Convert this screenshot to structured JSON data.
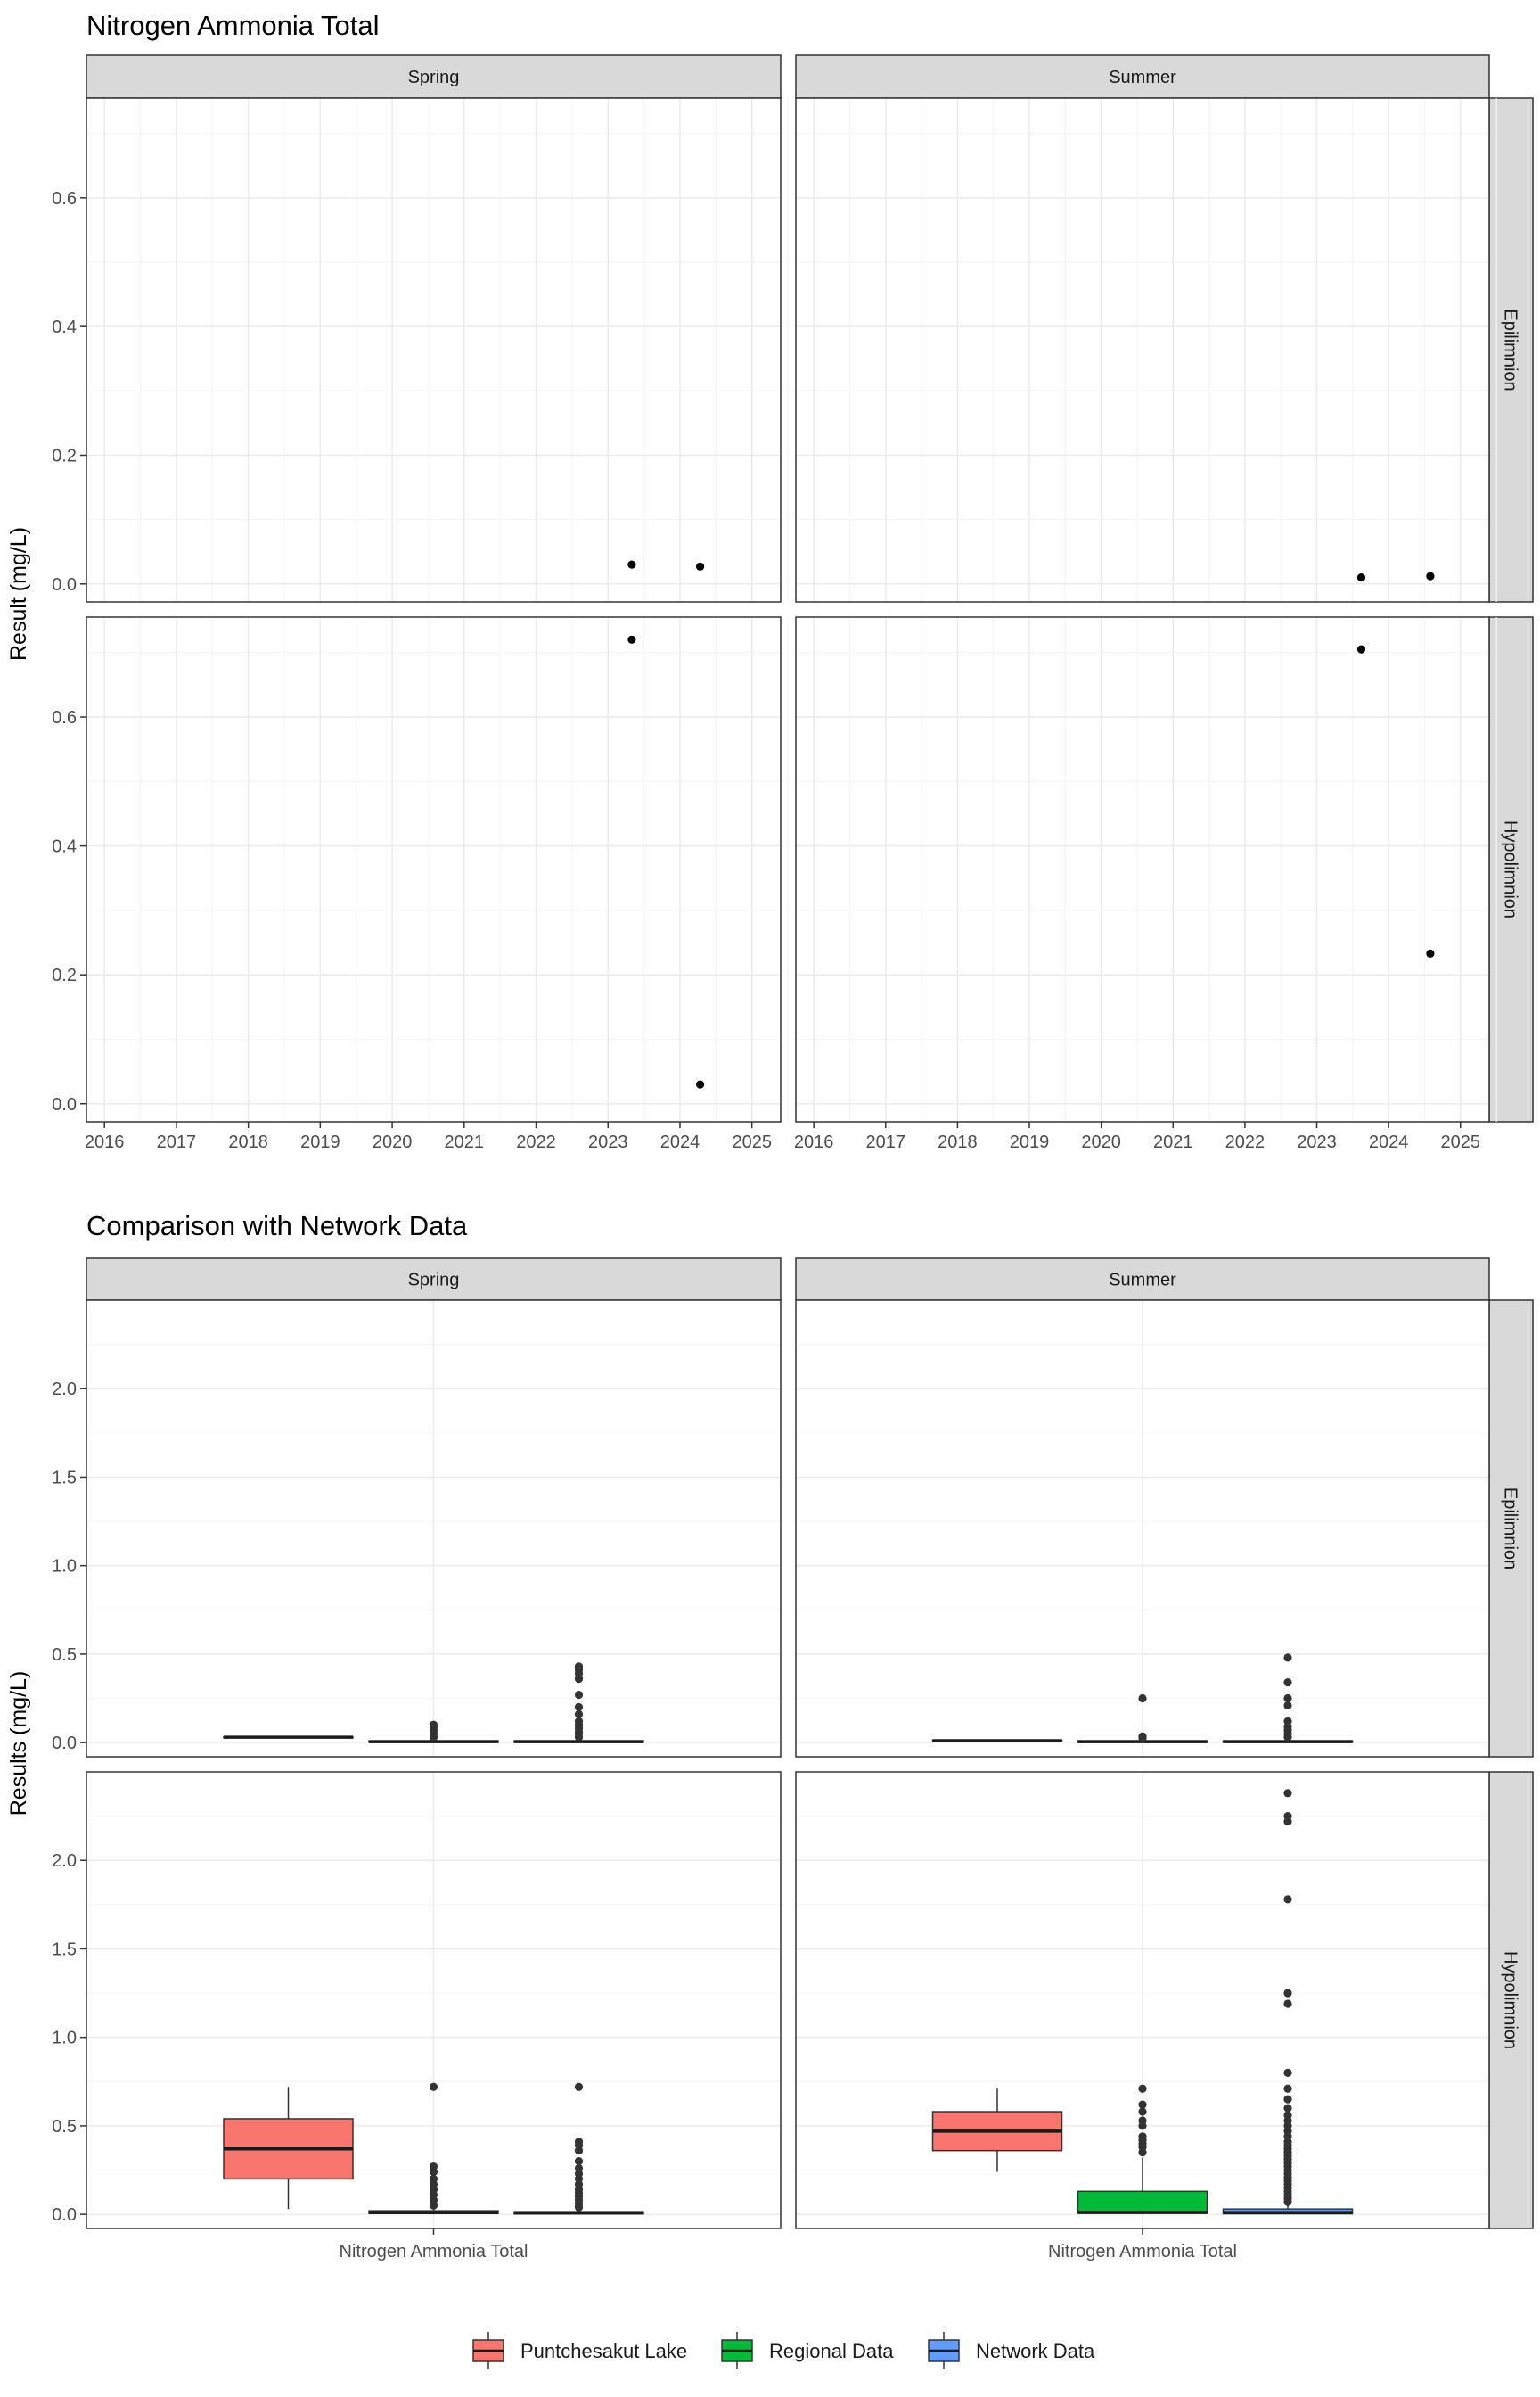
{
  "chart_data": [
    {
      "type": "scatter",
      "title": "Nitrogen Ammonia Total",
      "ylabel": "Result (mg/L)",
      "xlabel": "",
      "facet_cols": [
        "Spring",
        "Summer"
      ],
      "facet_rows": [
        "Epilimnion",
        "Hypolimnion"
      ],
      "x_ticks": [
        "2016",
        "2017",
        "2018",
        "2019",
        "2020",
        "2021",
        "2022",
        "2023",
        "2024",
        "2025"
      ],
      "xlim": [
        2015.75,
        2025.4
      ],
      "y_ticks": [
        "0.0",
        "0.2",
        "0.4",
        "0.6"
      ],
      "ylim": [
        -0.028,
        0.755
      ],
      "grid": true,
      "panels": [
        {
          "season": "Spring",
          "layer": "Epilimnion",
          "points": [
            {
              "x": 2023.33,
              "y": 0.03
            },
            {
              "x": 2024.28,
              "y": 0.027
            }
          ]
        },
        {
          "season": "Summer",
          "layer": "Epilimnion",
          "points": [
            {
              "x": 2023.62,
              "y": 0.01
            },
            {
              "x": 2024.58,
              "y": 0.012
            }
          ]
        },
        {
          "season": "Spring",
          "layer": "Hypolimnion",
          "points": [
            {
              "x": 2023.33,
              "y": 0.72
            },
            {
              "x": 2024.28,
              "y": 0.03
            }
          ]
        },
        {
          "season": "Summer",
          "layer": "Hypolimnion",
          "points": [
            {
              "x": 2023.62,
              "y": 0.705
            },
            {
              "x": 2024.58,
              "y": 0.233
            }
          ]
        }
      ]
    },
    {
      "type": "boxplot",
      "title": "Comparison with Network Data",
      "ylabel": "Results (mg/L)",
      "xlabel": "",
      "facet_cols": [
        "Spring",
        "Summer"
      ],
      "facet_rows": [
        "Epilimnion",
        "Hypolimnion"
      ],
      "category": "Nitrogen Ammonia Total",
      "y_ticks": [
        "0.0",
        "0.5",
        "1.0",
        "1.5",
        "2.0"
      ],
      "ylim": [
        -0.08,
        2.5
      ],
      "grid": true,
      "legend_position": "bottom",
      "groups": [
        {
          "name": "Puntchesakut Lake",
          "color": "#F8766D"
        },
        {
          "name": "Regional Data",
          "color": "#00BA38"
        },
        {
          "name": "Network Data",
          "color": "#619CFF"
        }
      ],
      "panels": [
        {
          "season": "Spring",
          "layer": "Epilimnion",
          "boxes": [
            {
              "q1": 0.028,
              "median": 0.03,
              "q3": 0.032,
              "lower": 0.028,
              "upper": 0.032,
              "outliers": []
            },
            {
              "q1": 0.002,
              "median": 0.005,
              "q3": 0.01,
              "lower": 0.0,
              "upper": 0.02,
              "outliers": [
                0.03,
                0.05,
                0.07,
                0.09,
                0.1
              ]
            },
            {
              "q1": 0.002,
              "median": 0.005,
              "q3": 0.01,
              "lower": 0.0,
              "upper": 0.02,
              "outliers": [
                0.03,
                0.05,
                0.06,
                0.08,
                0.1,
                0.12,
                0.16,
                0.2,
                0.27,
                0.36,
                0.39,
                0.41,
                0.43
              ]
            }
          ]
        },
        {
          "season": "Summer",
          "layer": "Epilimnion",
          "boxes": [
            {
              "q1": 0.009,
              "median": 0.011,
              "q3": 0.013,
              "lower": 0.009,
              "upper": 0.013,
              "outliers": []
            },
            {
              "q1": 0.002,
              "median": 0.005,
              "q3": 0.01,
              "lower": 0.0,
              "upper": 0.02,
              "outliers": [
                0.025,
                0.035,
                0.25
              ]
            },
            {
              "q1": 0.002,
              "median": 0.005,
              "q3": 0.01,
              "lower": 0.0,
              "upper": 0.02,
              "outliers": [
                0.03,
                0.05,
                0.07,
                0.09,
                0.12,
                0.21,
                0.25,
                0.34,
                0.48
              ]
            }
          ]
        },
        {
          "season": "Spring",
          "layer": "Hypolimnion",
          "boxes": [
            {
              "q1": 0.2,
              "median": 0.37,
              "q3": 0.54,
              "lower": 0.03,
              "upper": 0.72,
              "outliers": []
            },
            {
              "q1": 0.005,
              "median": 0.01,
              "q3": 0.02,
              "lower": 0.0,
              "upper": 0.035,
              "outliers": [
                0.05,
                0.08,
                0.11,
                0.14,
                0.17,
                0.2,
                0.24,
                0.27,
                0.72
              ]
            },
            {
              "q1": 0.002,
              "median": 0.008,
              "q3": 0.015,
              "lower": 0.0,
              "upper": 0.03,
              "outliers": [
                0.04,
                0.06,
                0.08,
                0.1,
                0.12,
                0.14,
                0.17,
                0.2,
                0.23,
                0.26,
                0.3,
                0.36,
                0.39,
                0.41,
                0.72
              ]
            }
          ]
        },
        {
          "season": "Summer",
          "layer": "Hypolimnion",
          "boxes": [
            {
              "q1": 0.36,
              "median": 0.47,
              "q3": 0.58,
              "lower": 0.24,
              "upper": 0.71,
              "outliers": []
            },
            {
              "q1": 0.005,
              "median": 0.012,
              "q3": 0.13,
              "lower": 0.0,
              "upper": 0.32,
              "outliers": [
                0.35,
                0.38,
                0.4,
                0.42,
                0.44,
                0.5,
                0.53,
                0.58,
                0.62,
                0.71
              ]
            },
            {
              "q1": 0.003,
              "median": 0.01,
              "q3": 0.03,
              "lower": 0.0,
              "upper": 0.06,
              "outliers": [
                0.07,
                0.09,
                0.11,
                0.13,
                0.15,
                0.17,
                0.19,
                0.21,
                0.23,
                0.25,
                0.27,
                0.29,
                0.31,
                0.33,
                0.35,
                0.37,
                0.39,
                0.41,
                0.44,
                0.47,
                0.5,
                0.53,
                0.56,
                0.6,
                0.65,
                0.71,
                0.8,
                1.19,
                1.25,
                1.78,
                2.22,
                2.25,
                2.38
              ]
            }
          ]
        }
      ]
    }
  ]
}
